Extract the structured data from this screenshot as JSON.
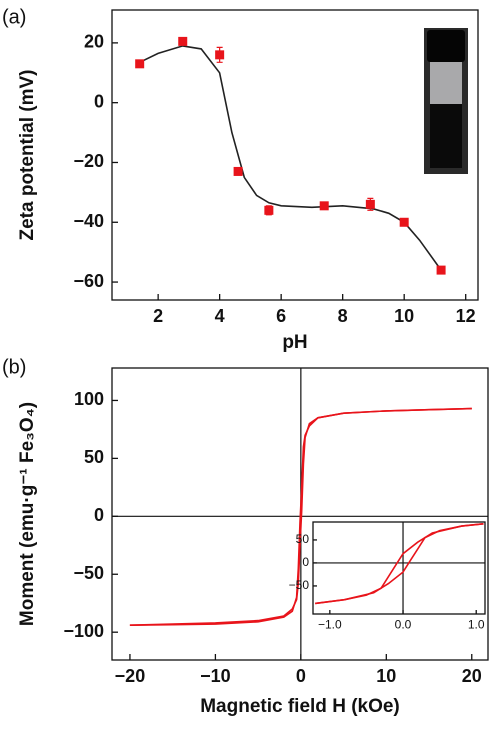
{
  "chart_data": [
    {
      "type": "scatter",
      "panel_label": "(a)",
      "x_label": "pH",
      "y_label": "Zeta potential (mV)",
      "xlim": [
        0.5,
        12.4
      ],
      "ylim": [
        -66,
        31
      ],
      "xticks": [
        2,
        4,
        6,
        8,
        10,
        12
      ],
      "yticks": [
        {
          "value": -60,
          "label": "−60"
        },
        {
          "value": -40,
          "label": "−40"
        },
        {
          "value": -20,
          "label": "−20"
        },
        0,
        20
      ],
      "series": [
        {
          "type": "scatter",
          "color": "#e8141b",
          "x": [
            1.4,
            2.8,
            4.0,
            4.6,
            5.6,
            7.4,
            8.9,
            10.0,
            11.2
          ],
          "values": [
            13,
            20.5,
            16,
            -23,
            -36,
            -34.5,
            -34,
            -40,
            -56
          ],
          "errors": [
            1,
            1,
            2.5,
            0.8,
            1.5,
            1.2,
            2,
            1,
            1
          ]
        },
        {
          "type": "line",
          "color": "#222222",
          "x": [
            1.4,
            2,
            2.8,
            3.4,
            4,
            4.4,
            4.8,
            5.2,
            5.6,
            6,
            7,
            8,
            9,
            9.5,
            10,
            10.5,
            11.2
          ],
          "values": [
            13.5,
            16.5,
            19,
            18,
            10,
            -10,
            -25,
            -31,
            -33.5,
            -34.5,
            -35,
            -34.5,
            -35.5,
            -37,
            -40,
            -46,
            -56
          ]
        }
      ]
    },
    {
      "type": "line",
      "panel_label": "(b)",
      "x_label": "Magnetic field H (kOe)",
      "y_label": "Moment (emu·g⁻¹ Fe₃O₄)",
      "xlim": [
        -22.1,
        21.9
      ],
      "ylim": [
        -124,
        128
      ],
      "zero_lines": true,
      "xticks": [
        {
          "value": -20,
          "label": "−20"
        },
        {
          "value": -10,
          "label": "−10"
        },
        0,
        10,
        20
      ],
      "yticks": [
        {
          "value": -100,
          "label": "−100"
        },
        {
          "value": -50,
          "label": "−50"
        },
        0,
        50,
        100
      ],
      "series": [
        {
          "color": "#e8141b",
          "x": [
            -20,
            -15,
            -10,
            -5,
            -2,
            -1,
            -0.5,
            -0.3,
            -0.1,
            0.1,
            0.3,
            0.5,
            1,
            2,
            5,
            10,
            15,
            20
          ],
          "values": [
            -94,
            -93.5,
            -93,
            -91,
            -87,
            -82,
            -70,
            -45,
            -5,
            25,
            60,
            70,
            78,
            85,
            89,
            91,
            92,
            93
          ]
        },
        {
          "color": "#e8141b",
          "x": [
            20,
            15,
            10,
            5,
            2,
            1,
            0.5,
            0.3,
            0.1,
            -0.1,
            -0.3,
            -0.5,
            -1,
            -2,
            -5,
            -10,
            -15,
            -20
          ],
          "values": [
            93,
            92,
            91,
            89,
            85,
            80,
            68,
            45,
            5,
            -25,
            -58,
            -72,
            -80,
            -86,
            -90,
            -92,
            -93,
            -94
          ]
        }
      ]
    },
    {
      "type": "line",
      "zero_lines": true,
      "xlim": [
        -1.23,
        1.12
      ],
      "ylim": [
        -111,
        89
      ],
      "xticks": [
        {
          "value": -1,
          "label": "−1.0"
        },
        {
          "value": 0,
          "label": "0.0"
        },
        {
          "value": 1,
          "label": "1.0"
        }
      ],
      "yticks": [
        {
          "value": -50,
          "label": "−50"
        },
        0,
        50
      ],
      "series": [
        {
          "color": "#e8141b",
          "x": [
            -1.2,
            -0.8,
            -0.4,
            -0.2,
            0,
            0.1,
            0.2,
            0.3,
            0.5,
            0.8,
            1.1
          ],
          "values": [
            -88,
            -80,
            -65,
            -45,
            -20,
            5,
            30,
            55,
            70,
            80,
            85
          ]
        },
        {
          "color": "#e8141b",
          "x": [
            1.1,
            0.8,
            0.4,
            0.2,
            0,
            -0.1,
            -0.2,
            -0.3,
            -0.5,
            -0.8,
            -1.2
          ],
          "values": [
            85,
            80,
            65,
            45,
            20,
            -5,
            -30,
            -55,
            -70,
            -80,
            -88
          ]
        }
      ]
    }
  ]
}
